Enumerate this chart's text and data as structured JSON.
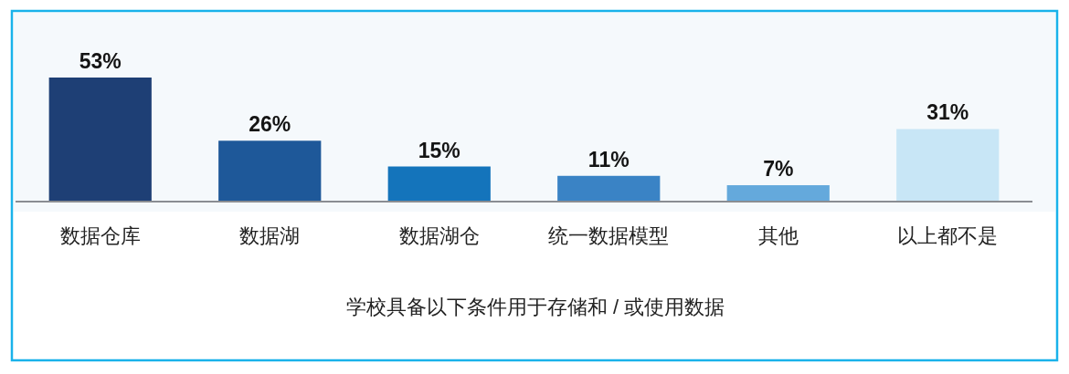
{
  "chart_data": {
    "type": "bar",
    "xlabel": "学校具备以下条件用于存储和 / 或使用数据",
    "categories": [
      "数据仓库",
      "数据湖",
      "数据湖仓",
      "统一数据模型",
      "其他",
      "以上都不是"
    ],
    "values": [
      53,
      26,
      15,
      11,
      7,
      31
    ],
    "colors": [
      "#1e3f75",
      "#1e5899",
      "#1474bb",
      "#3a83c5",
      "#64a9dc",
      "#c8e6f6"
    ],
    "value_labels": [
      "53%",
      "26%",
      "15%",
      "11%",
      "7%",
      "31%"
    ]
  }
}
